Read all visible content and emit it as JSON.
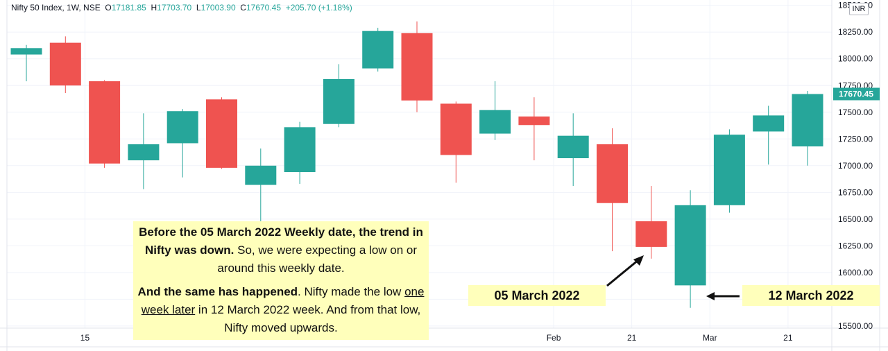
{
  "legend": {
    "symbol": "Nifty 50 Index, 1W, NSE",
    "o_label": "O",
    "o": "17181.85",
    "h_label": "H",
    "h": "17703.70",
    "l_label": "L",
    "l": "17003.90",
    "c_label": "C",
    "c": "17670.45",
    "change": "+205.70 (+1.18%)"
  },
  "currency": "INR",
  "annotation": {
    "p1_bold": "Before the 05 March 2022 Weekly date, the trend in Nifty was down.",
    "p1_rest": " So, we were expecting a low on or around this weekly date.",
    "p2_bold": "And the same has happened",
    "p2_a": ". Nifty made the low ",
    "p2_underline": "one week later",
    "p2_b": " in 12 March 2022 week. And from that low, Nifty moved upwards."
  },
  "callouts": [
    "05 March 2022",
    "12 March 2022"
  ],
  "colors": {
    "up": "#26a69a",
    "down": "#ef5350",
    "grid": "#f0f3fa",
    "axis_text": "#131722",
    "annotation_bg": "#ffffbb"
  },
  "chart_data": {
    "type": "candlestick",
    "y_ticks": [
      "15500.00",
      "15750.00",
      "16000.00",
      "16250.00",
      "16500.00",
      "16750.00",
      "17000.00",
      "17250.00",
      "17500.00",
      "17750.00",
      "18000.00",
      "18250.00",
      "18500.00"
    ],
    "y_tick_values": [
      15500,
      15750,
      16000,
      16250,
      16500,
      16750,
      17000,
      17250,
      17500,
      17750,
      18000,
      18250,
      18500
    ],
    "x_ticks": [
      {
        "label": "15",
        "at": 1.5
      },
      {
        "label": "Feb",
        "at": 13.5
      },
      {
        "label": "21",
        "at": 15.5
      },
      {
        "label": "Mar",
        "at": 17.5
      },
      {
        "label": "21",
        "at": 19.5
      }
    ],
    "last_price": "17670.45",
    "last_price_value": 17670.45,
    "ylim": [
      15480,
      18550
    ],
    "candles": [
      {
        "o": 18040,
        "h": 18130,
        "l": 17790,
        "c": 18100
      },
      {
        "o": 18150,
        "h": 18210,
        "l": 17680,
        "c": 17750
      },
      {
        "o": 17790,
        "h": 17800,
        "l": 16980,
        "c": 17020
      },
      {
        "o": 17050,
        "h": 17490,
        "l": 16780,
        "c": 17200
      },
      {
        "o": 17210,
        "h": 17530,
        "l": 16890,
        "c": 17510
      },
      {
        "o": 17620,
        "h": 17640,
        "l": 16970,
        "c": 16980
      },
      {
        "o": 16820,
        "h": 17160,
        "l": 16410,
        "c": 17000
      },
      {
        "o": 16940,
        "h": 17410,
        "l": 16830,
        "c": 17360
      },
      {
        "o": 17390,
        "h": 17950,
        "l": 17360,
        "c": 17810
      },
      {
        "o": 17910,
        "h": 18290,
        "l": 17880,
        "c": 18260
      },
      {
        "o": 18240,
        "h": 18350,
        "l": 17500,
        "c": 17610
      },
      {
        "o": 17580,
        "h": 17600,
        "l": 16840,
        "c": 17100
      },
      {
        "o": 17300,
        "h": 17790,
        "l": 17240,
        "c": 17520
      },
      {
        "o": 17460,
        "h": 17640,
        "l": 17050,
        "c": 17380
      },
      {
        "o": 17070,
        "h": 17490,
        "l": 16810,
        "c": 17280
      },
      {
        "o": 17200,
        "h": 17350,
        "l": 16200,
        "c": 16650
      },
      {
        "o": 16480,
        "h": 16810,
        "l": 16130,
        "c": 16240
      },
      {
        "o": 15880,
        "h": 16770,
        "l": 15670,
        "c": 16630
      },
      {
        "o": 16630,
        "h": 17340,
        "l": 16560,
        "c": 17290
      },
      {
        "o": 17320,
        "h": 17560,
        "l": 17010,
        "c": 17470
      },
      {
        "o": 17180,
        "h": 17700,
        "l": 17000,
        "c": 17670
      }
    ]
  }
}
